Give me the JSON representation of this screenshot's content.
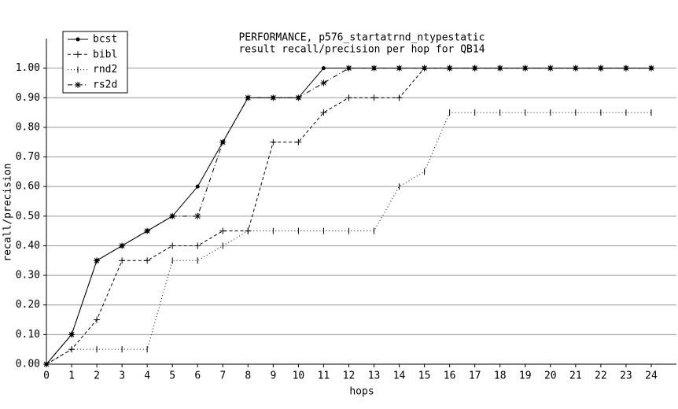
{
  "chart_data": {
    "type": "line",
    "title": "PERFORMANCE, p576_startatrnd_ntypestatic",
    "subtitle": "result recall/precision per hop for QB14",
    "x_label": "hops",
    "y_label": "recall/precision",
    "x": [
      0,
      1,
      2,
      3,
      4,
      5,
      6,
      7,
      8,
      9,
      10,
      11,
      12,
      13,
      14,
      15,
      16,
      17,
      18,
      19,
      20,
      21,
      22,
      23,
      24
    ],
    "series": [
      {
        "name": "bcst",
        "color": "#000000",
        "dash": "solid",
        "marker": "dot",
        "values": [
          0,
          0.1,
          0.35,
          0.4,
          0.45,
          0.5,
          0.6,
          0.75,
          0.9,
          0.9,
          0.9,
          1.0,
          1.0,
          1.0,
          1.0,
          1.0,
          1.0,
          1.0,
          1.0,
          1.0,
          1.0,
          1.0,
          1.0,
          1.0,
          1.0
        ]
      },
      {
        "name": "bibl",
        "color": "#000000",
        "dash": "dashed",
        "marker": "plus",
        "values": [
          0,
          0.05,
          0.15,
          0.35,
          0.35,
          0.4,
          0.4,
          0.45,
          0.45,
          0.75,
          0.75,
          0.85,
          0.9,
          0.9,
          0.9,
          1.0,
          1.0,
          1.0,
          1.0,
          1.0,
          1.0,
          1.0,
          1.0,
          1.0,
          1.0
        ]
      },
      {
        "name": "rnd2",
        "color": "#000000",
        "dash": "dotted",
        "marker": "tick",
        "values": [
          0,
          0.05,
          0.05,
          0.05,
          0.05,
          0.35,
          0.35,
          0.4,
          0.45,
          0.45,
          0.45,
          0.45,
          0.45,
          0.45,
          0.6,
          0.65,
          0.85,
          0.85,
          0.85,
          0.85,
          0.85,
          0.85,
          0.85,
          0.85,
          0.85
        ]
      },
      {
        "name": "rs2d",
        "color": "#000000",
        "dash": "dashdot",
        "marker": "star",
        "values": [
          0,
          0.1,
          0.35,
          0.4,
          0.45,
          0.5,
          0.5,
          0.75,
          0.9,
          0.9,
          0.9,
          0.95,
          1.0,
          1.0,
          1.0,
          1.0,
          1.0,
          1.0,
          1.0,
          1.0,
          1.0,
          1.0,
          1.0,
          1.0,
          1.0
        ]
      }
    ],
    "xlim": [
      0,
      25
    ],
    "ylim": [
      0,
      1.1
    ],
    "xticks": [
      0,
      1,
      2,
      3,
      4,
      5,
      6,
      7,
      8,
      9,
      10,
      11,
      12,
      13,
      14,
      15,
      16,
      17,
      18,
      19,
      20,
      21,
      22,
      23,
      24
    ],
    "yticks": [
      {
        "value": 0,
        "label": "0.00"
      },
      {
        "value": 0.1,
        "label": "0.10"
      },
      {
        "value": 0.2,
        "label": "0.20"
      },
      {
        "value": 0.3,
        "label": "0.30"
      },
      {
        "value": 0.4,
        "label": "0.40"
      },
      {
        "value": 0.5,
        "label": "0.50"
      },
      {
        "value": 0.6,
        "label": "0.60"
      },
      {
        "value": 0.7,
        "label": "0.70"
      },
      {
        "value": 0.8,
        "label": "0.80"
      },
      {
        "value": 0.9,
        "label": "0.90"
      },
      {
        "value": 1.0,
        "label": "1.00"
      }
    ],
    "grid": true,
    "legend": "top-left"
  }
}
